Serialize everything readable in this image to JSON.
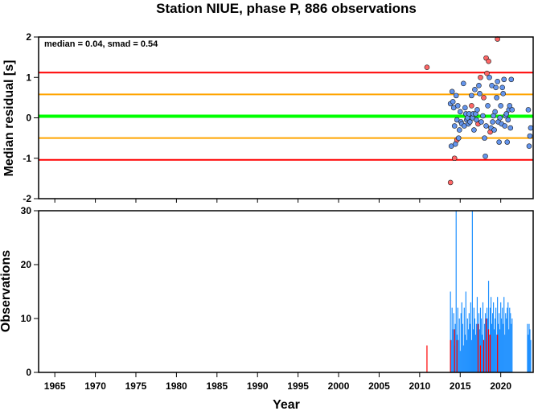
{
  "title": "Station NIUE, phase P, 886 observations",
  "chart_data": [
    {
      "type": "scatter",
      "ylabel": "Median residual [s]",
      "annotation": "median = 0.04, smad = 0.54",
      "xlim": [
        1963,
        2024
      ],
      "ylim": [
        -2,
        2
      ],
      "yticks": [
        "2",
        "1",
        "0",
        "-1",
        "-2"
      ],
      "ytick_values": [
        2,
        1,
        0,
        -1,
        -2
      ],
      "reference_lines": [
        {
          "value": 1.12,
          "color": "#ff0000"
        },
        {
          "value": 0.58,
          "color": "#ffa500"
        },
        {
          "value": 0.04,
          "color": "#00ff00"
        },
        {
          "value": -0.5,
          "color": "#ffa500"
        },
        {
          "value": -1.04,
          "color": "#ff0000"
        }
      ],
      "series": [
        {
          "color": "#ff6666",
          "points": [
            [
              2010.9,
              1.25
            ],
            [
              2013.8,
              -1.6
            ],
            [
              2014.3,
              -1.0
            ],
            [
              2014.6,
              -0.55
            ],
            [
              2017.5,
              1.0
            ],
            [
              2017.9,
              0.5
            ],
            [
              2018.2,
              1.48
            ],
            [
              2018.5,
              1.4
            ],
            [
              2018.3,
              1.1
            ],
            [
              2019.6,
              1.95
            ],
            [
              2017.2,
              -0.15
            ],
            [
              2018.7,
              -0.35
            ],
            [
              2016.4,
              0.3
            ]
          ]
        },
        {
          "color": "#6495ed",
          "points": [
            [
              2013.8,
              0.35
            ],
            [
              2013.9,
              -0.7
            ],
            [
              2014.0,
              0.65
            ],
            [
              2014.1,
              0.4
            ],
            [
              2014.2,
              0.25
            ],
            [
              2014.3,
              -0.2
            ],
            [
              2014.4,
              -0.65
            ],
            [
              2014.5,
              0.55
            ],
            [
              2014.6,
              -0.05
            ],
            [
              2014.7,
              0.3
            ],
            [
              2014.8,
              -0.5
            ],
            [
              2014.9,
              -0.3
            ],
            [
              2015.0,
              0.15
            ],
            [
              2015.1,
              -0.1
            ],
            [
              2015.2,
              -0.15
            ],
            [
              2015.4,
              0.85
            ],
            [
              2015.5,
              -0.2
            ],
            [
              2015.6,
              0.25
            ],
            [
              2015.7,
              0.1
            ],
            [
              2015.8,
              -0.05
            ],
            [
              2015.9,
              0.0
            ],
            [
              2016.0,
              -0.15
            ],
            [
              2016.1,
              0.1
            ],
            [
              2016.2,
              -0.1
            ],
            [
              2016.4,
              0.55
            ],
            [
              2016.5,
              0.0
            ],
            [
              2016.6,
              0.1
            ],
            [
              2016.7,
              -0.3
            ],
            [
              2016.8,
              0.7
            ],
            [
              2016.9,
              0.1
            ],
            [
              2017.0,
              -0.05
            ],
            [
              2017.1,
              0.2
            ],
            [
              2017.3,
              0.8
            ],
            [
              2017.4,
              0.6
            ],
            [
              2017.6,
              -0.1
            ],
            [
              2017.8,
              0.05
            ],
            [
              2018.0,
              -0.5
            ],
            [
              2018.1,
              -0.95
            ],
            [
              2018.2,
              -0.2
            ],
            [
              2018.4,
              0.3
            ],
            [
              2018.6,
              1.0
            ],
            [
              2018.8,
              -0.25
            ],
            [
              2018.9,
              0.8
            ],
            [
              2019.0,
              -0.1
            ],
            [
              2019.1,
              0.05
            ],
            [
              2019.2,
              -0.3
            ],
            [
              2019.3,
              0.15
            ],
            [
              2019.4,
              0.75
            ],
            [
              2019.5,
              0.5
            ],
            [
              2019.6,
              0.9
            ],
            [
              2019.7,
              -0.1
            ],
            [
              2019.8,
              -0.6
            ],
            [
              2019.9,
              0.0
            ],
            [
              2020.0,
              0.3
            ],
            [
              2020.1,
              -0.15
            ],
            [
              2020.2,
              0.75
            ],
            [
              2020.3,
              0.6
            ],
            [
              2020.4,
              0.95
            ],
            [
              2020.5,
              -0.2
            ],
            [
              2020.6,
              0.05
            ],
            [
              2020.7,
              0.1
            ],
            [
              2020.8,
              -0.6
            ],
            [
              2020.9,
              -0.05
            ],
            [
              2021.0,
              0.2
            ],
            [
              2021.1,
              0.3
            ],
            [
              2021.2,
              -0.25
            ],
            [
              2021.3,
              0.95
            ],
            [
              2021.4,
              0.2
            ],
            [
              2023.4,
              0.2
            ],
            [
              2023.5,
              -0.7
            ],
            [
              2023.6,
              -0.45
            ],
            [
              2023.7,
              -0.25
            ]
          ]
        }
      ]
    },
    {
      "type": "bar",
      "xlabel": "Year",
      "ylabel": "Observations",
      "xlim": [
        1963,
        2024
      ],
      "ylim": [
        0,
        30
      ],
      "xticks": [
        "1965",
        "1970",
        "1975",
        "1980",
        "1985",
        "1990",
        "1995",
        "2000",
        "2005",
        "2010",
        "2015",
        "2020"
      ],
      "xtick_values": [
        1965,
        1970,
        1975,
        1980,
        1985,
        1990,
        1995,
        2000,
        2005,
        2010,
        2015,
        2020
      ],
      "yticks": [
        "30",
        "20",
        "10",
        "0"
      ],
      "ytick_values": [
        30,
        20,
        10,
        0
      ],
      "series": [
        {
          "color": "#1e90ff",
          "x": [
            2013.8,
            2013.9,
            2014.0,
            2014.1,
            2014.2,
            2014.3,
            2014.4,
            2014.5,
            2014.6,
            2014.7,
            2014.8,
            2014.9,
            2015.0,
            2015.1,
            2015.2,
            2015.3,
            2015.4,
            2015.5,
            2015.6,
            2015.7,
            2015.8,
            2015.9,
            2016.0,
            2016.1,
            2016.2,
            2016.3,
            2016.4,
            2016.5,
            2016.6,
            2016.7,
            2016.8,
            2016.9,
            2017.0,
            2017.1,
            2017.2,
            2017.3,
            2017.4,
            2017.5,
            2017.6,
            2017.7,
            2017.8,
            2017.9,
            2018.0,
            2018.1,
            2018.2,
            2018.3,
            2018.4,
            2018.5,
            2018.6,
            2018.7,
            2018.8,
            2018.9,
            2019.0,
            2019.1,
            2019.2,
            2019.3,
            2019.4,
            2019.5,
            2019.6,
            2019.7,
            2019.8,
            2019.9,
            2020.0,
            2020.1,
            2020.2,
            2020.3,
            2020.4,
            2020.5,
            2020.6,
            2020.7,
            2020.8,
            2020.9,
            2021.0,
            2021.1,
            2021.2,
            2021.3,
            2021.4,
            2023.3,
            2023.4,
            2023.5,
            2023.6,
            2023.7
          ],
          "values": [
            15,
            6,
            12,
            8,
            11,
            5,
            9,
            30,
            7,
            12,
            6,
            10,
            4,
            11,
            13,
            9,
            5,
            12,
            7,
            15,
            6,
            10,
            8,
            11,
            9,
            13,
            6,
            30,
            8,
            12,
            10,
            7,
            9,
            14,
            6,
            11,
            8,
            12,
            10,
            7,
            13,
            6,
            9,
            11,
            8,
            12,
            10,
            17,
            7,
            12,
            14,
            9,
            11,
            13,
            8,
            10,
            12,
            7,
            14,
            9,
            11,
            8,
            13,
            10,
            12,
            9,
            14,
            7,
            11,
            10,
            12,
            13,
            8,
            12,
            11,
            9,
            10,
            9,
            7,
            9,
            8,
            6
          ]
        },
        {
          "color": "#ff0000",
          "x": [
            2010.9,
            2013.8,
            2014.3,
            2014.6,
            2017.2,
            2017.5,
            2017.9,
            2018.2,
            2018.5,
            2018.7,
            2019.6
          ],
          "values": [
            5,
            6,
            8,
            6,
            9,
            5,
            6,
            10,
            8,
            7,
            7
          ]
        }
      ]
    }
  ]
}
